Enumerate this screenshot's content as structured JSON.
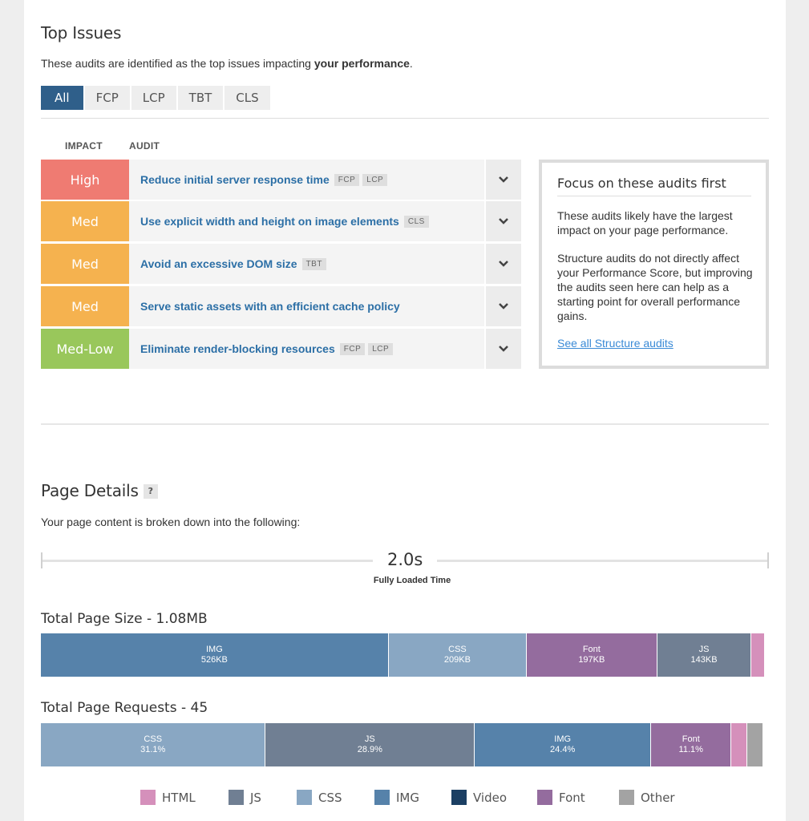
{
  "top_issues": {
    "title": "Top Issues",
    "desc_prefix": "These audits are identified as the top issues impacting ",
    "desc_bold": "your performance",
    "desc_suffix": ".",
    "tabs": [
      "All",
      "FCP",
      "LCP",
      "TBT",
      "CLS"
    ],
    "col_impact": "IMPACT",
    "col_audit": "AUDIT",
    "audits": [
      {
        "impact": "High",
        "title": "Reduce initial server response time",
        "tags": [
          "FCP",
          "LCP"
        ]
      },
      {
        "impact": "Med",
        "title": "Use explicit width and height on image elements",
        "tags": [
          "CLS"
        ]
      },
      {
        "impact": "Med",
        "title": "Avoid an excessive DOM size",
        "tags": [
          "TBT"
        ]
      },
      {
        "impact": "Med",
        "title": "Serve static assets with an efficient cache policy",
        "tags": []
      },
      {
        "impact": "Med-Low",
        "title": "Eliminate render-blocking resources",
        "tags": [
          "FCP",
          "LCP"
        ]
      }
    ],
    "focus": {
      "title": "Focus on these audits first",
      "p1": "These audits likely have the largest impact on your page performance.",
      "p2": "Structure audits do not directly affect your Performance Score, but improving the audits seen here can help as a starting point for overall performance gains.",
      "link": "See all Structure audits"
    }
  },
  "page_details": {
    "title": "Page Details",
    "help": "?",
    "desc": "Your page content is broken down into the following:",
    "loaded_time": "2.0s",
    "loaded_label": "Fully Loaded Time",
    "size_title": "Total Page Size - 1.08MB",
    "requests_title": "Total Page Requests - 45",
    "size_segments": [
      {
        "label": "IMG",
        "value": "526KB",
        "kb": 526,
        "color": "#5682aa"
      },
      {
        "label": "CSS",
        "value": "209KB",
        "kb": 209,
        "color": "#89a7c3"
      },
      {
        "label": "Font",
        "value": "197KB",
        "kb": 197,
        "color": "#946c9e"
      },
      {
        "label": "JS",
        "value": "143KB",
        "kb": 143,
        "color": "#707f93"
      },
      {
        "label": "",
        "value": "",
        "kb": 20,
        "color": "#d590bb"
      }
    ],
    "request_segments": [
      {
        "label": "CSS",
        "value": "31.1%",
        "pct": 31.1,
        "color": "#89a7c3"
      },
      {
        "label": "JS",
        "value": "28.9%",
        "pct": 28.9,
        "color": "#707f93"
      },
      {
        "label": "IMG",
        "value": "24.4%",
        "pct": 24.4,
        "color": "#5682aa"
      },
      {
        "label": "Font",
        "value": "11.1%",
        "pct": 11.1,
        "color": "#946c9e"
      },
      {
        "label": "",
        "value": "",
        "pct": 2.2,
        "color": "#d590bb"
      },
      {
        "label": "",
        "value": "",
        "pct": 2.2,
        "color": "#a3a3a3"
      }
    ],
    "legend": [
      {
        "name": "HTML",
        "color": "#d590bb"
      },
      {
        "name": "JS",
        "color": "#707f93"
      },
      {
        "name": "CSS",
        "color": "#89a7c3"
      },
      {
        "name": "IMG",
        "color": "#5682aa"
      },
      {
        "name": "Video",
        "color": "#1b3f63"
      },
      {
        "name": "Font",
        "color": "#946c9e"
      },
      {
        "name": "Other",
        "color": "#a3a3a3"
      }
    ]
  }
}
